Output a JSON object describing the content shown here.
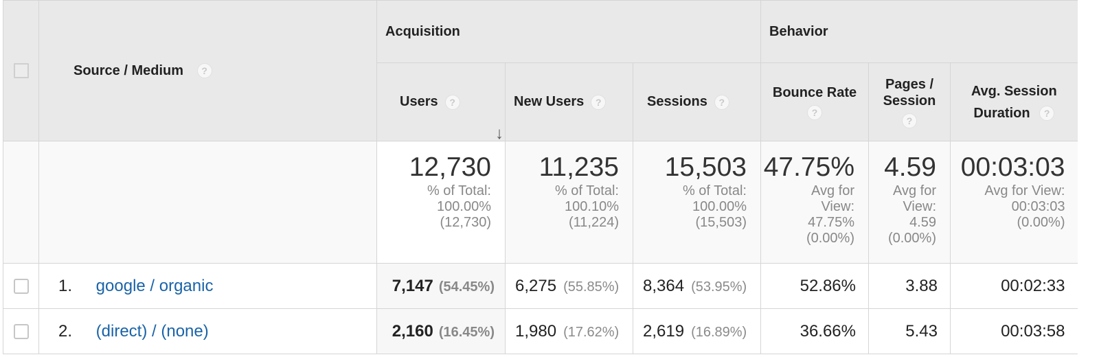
{
  "headers": {
    "source_medium": "Source / Medium",
    "group_acquisition": "Acquisition",
    "group_behavior": "Behavior",
    "users": "Users",
    "new_users": "New Users",
    "sessions": "Sessions",
    "bounce_rate": "Bounce Rate",
    "pages_session_line1": "Pages /",
    "pages_session_line2": "Session",
    "avg_duration_line1": "Avg. Session",
    "avg_duration_line2": "Duration",
    "help_glyph": "?",
    "sort_arrow": "↓"
  },
  "totals": {
    "users": {
      "value": "12,730",
      "l1": "% of Total:",
      "l2": "100.00%",
      "l3": "(12,730)"
    },
    "new_users": {
      "value": "11,235",
      "l1": "% of Total:",
      "l2": "100.10%",
      "l3": "(11,224)"
    },
    "sessions": {
      "value": "15,503",
      "l1": "% of Total:",
      "l2": "100.00%",
      "l3": "(15,503)"
    },
    "bounce_rate": {
      "value": "47.75%",
      "l1": "Avg for",
      "l2": "View:",
      "l3": "47.75%",
      "l4": "(0.00%)"
    },
    "pages_session": {
      "value": "4.59",
      "l1": "Avg for",
      "l2": "View:",
      "l3": "4.59",
      "l4": "(0.00%)"
    },
    "avg_duration": {
      "value": "00:03:03",
      "l1": "Avg for View:",
      "l2": "00:03:03",
      "l3": "(0.00%)"
    }
  },
  "rows": [
    {
      "index": "1.",
      "source": "google / organic",
      "users": "7,147",
      "users_pct": "(54.45%)",
      "new_users": "6,275",
      "new_users_pct": "(55.85%)",
      "sessions": "8,364",
      "sessions_pct": "(53.95%)",
      "bounce_rate": "52.86%",
      "pages_session": "3.88",
      "avg_duration": "00:02:33"
    },
    {
      "index": "2.",
      "source": "(direct) / (none)",
      "users": "2,160",
      "users_pct": "(16.45%)",
      "new_users": "1,980",
      "new_users_pct": "(17.62%)",
      "sessions": "2,619",
      "sessions_pct": "(16.89%)",
      "bounce_rate": "36.66%",
      "pages_session": "5.43",
      "avg_duration": "00:03:58"
    }
  ],
  "colors": {
    "link": "#1a63a8",
    "header_bg": "#e9e9e9",
    "border": "#d5d5d5"
  }
}
